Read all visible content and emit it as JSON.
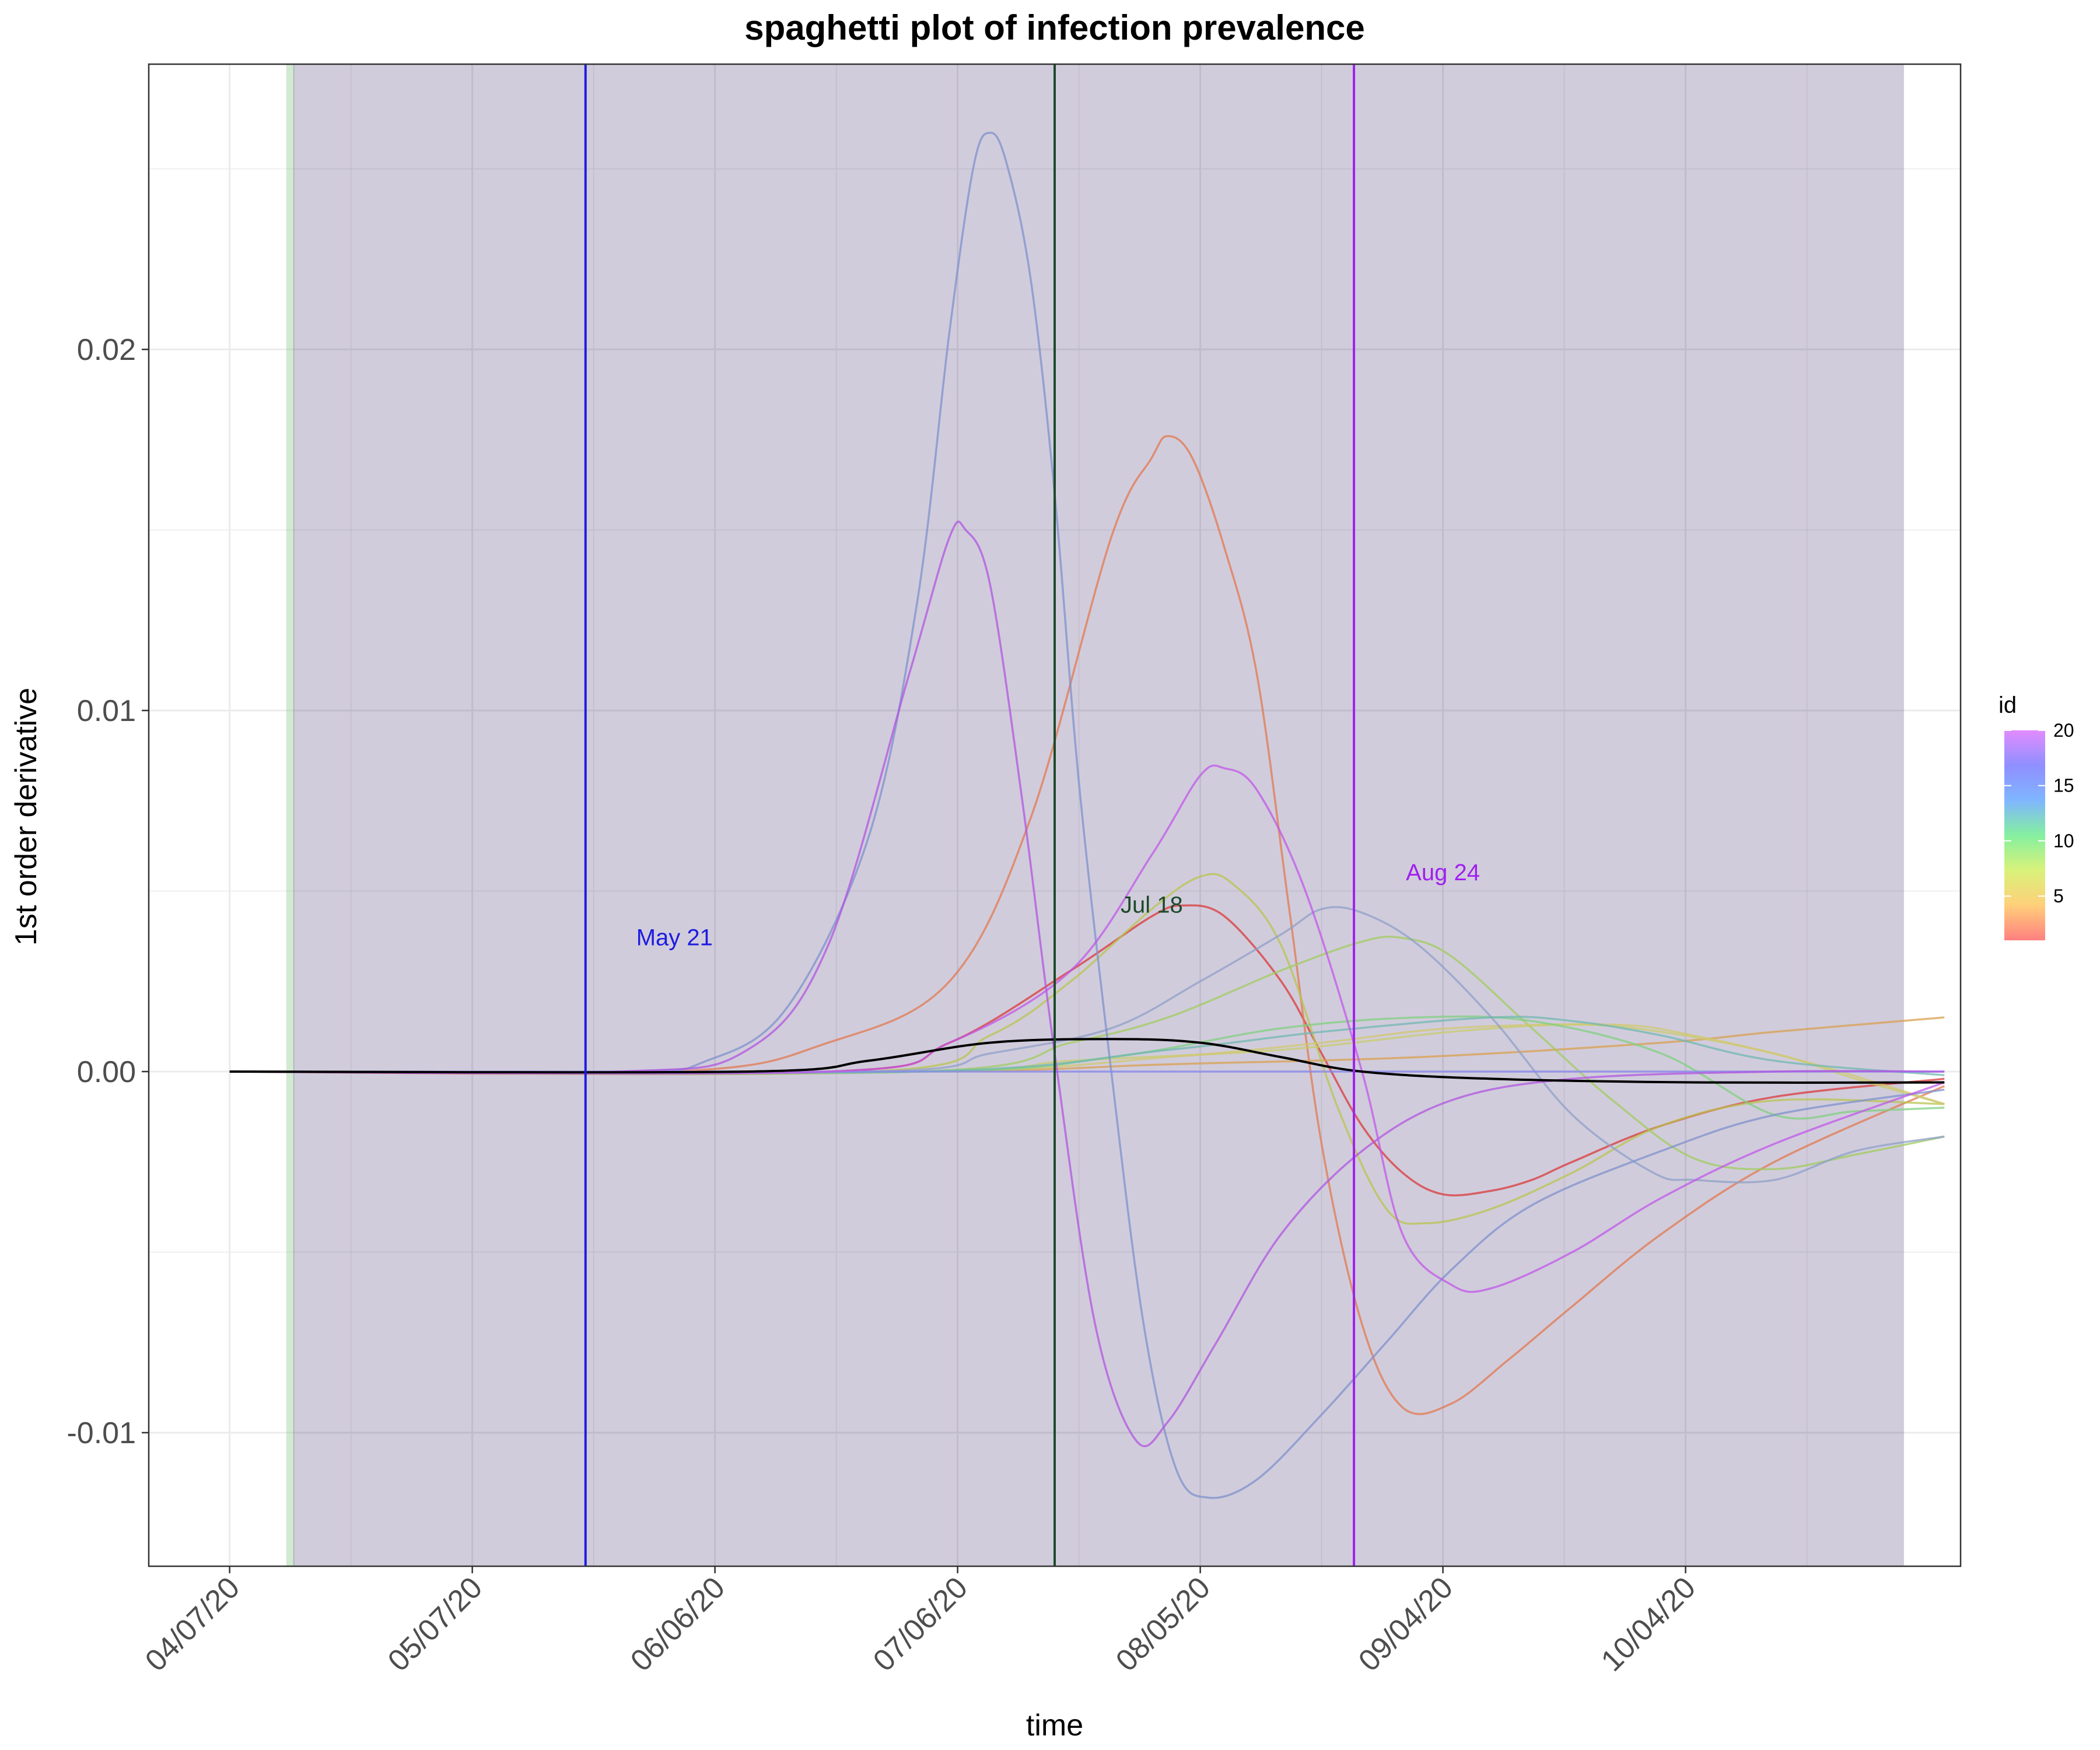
{
  "chart_data": {
    "type": "line",
    "title": "spaghetti plot of infection prevalence",
    "xlabel": "time",
    "ylabel": "1st order derivative",
    "x_ticks": [
      "04/07/20",
      "05/07/20",
      "06/06/20",
      "07/06/20",
      "08/05/20",
      "09/04/20",
      "10/04/20"
    ],
    "xlim": [
      "2020-03-28",
      "2020-11-07"
    ],
    "y_ticks": [
      "-0.01",
      "0.00",
      "0.01",
      "0.02"
    ],
    "ylim": [
      -0.0137,
      0.0279
    ],
    "grid": true,
    "shaded_region": {
      "from": "2020-04-14",
      "to": "2020-10-31",
      "color": "#2e1760",
      "opacity": 0.22
    },
    "green_strip": {
      "from": "2020-04-14",
      "to": "2020-04-15",
      "color": "#7fc47f",
      "opacity": 0.35
    },
    "vlines": [
      {
        "date": "2020-05-21",
        "label": "May 21",
        "color": "#1c1ce0",
        "label_x": "2020-06-01",
        "label_y": 0.0035
      },
      {
        "date": "2020-07-18",
        "label": "Jul 18",
        "color": "#1d4a2a",
        "label_x": "2020-07-30",
        "label_y": 0.0044
      },
      {
        "date": "2020-08-24",
        "label": "Aug 24",
        "color": "#a020f0",
        "label_x": "2020-09-04",
        "label_y": 0.0053
      }
    ],
    "legend": {
      "title": "id",
      "position": "right",
      "ticks": [
        "20",
        "15",
        "10",
        "5"
      ],
      "tick_values": [
        20,
        15,
        10,
        5
      ],
      "range": [
        1,
        20
      ],
      "colors": [
        "#ff8080",
        "#ffcf7a",
        "#d9f27a",
        "#85f0a0",
        "#7fb6ff",
        "#8f8fff",
        "#e28cff"
      ]
    },
    "series": [
      {
        "id": 1,
        "color": "#d93a3a",
        "points": [
          [
            "2020-04-07",
            0
          ],
          [
            "2020-06-20",
            0
          ],
          [
            "2020-07-05",
            0.0008
          ],
          [
            "2020-07-20",
            0.0028
          ],
          [
            "2020-07-30",
            0.0043
          ],
          [
            "2020-08-03",
            0.0046
          ],
          [
            "2020-08-08",
            0.0043
          ],
          [
            "2020-08-15",
            0.0025
          ],
          [
            "2020-08-20",
            0.0005
          ],
          [
            "2020-08-25",
            -0.0015
          ],
          [
            "2020-08-30",
            -0.0028
          ],
          [
            "2020-09-04",
            -0.0034
          ],
          [
            "2020-09-10",
            -0.0033
          ],
          [
            "2020-09-15",
            -0.003
          ],
          [
            "2020-09-20",
            -0.0025
          ],
          [
            "2020-10-01",
            -0.0015
          ],
          [
            "2020-10-15",
            -0.0007
          ],
          [
            "2020-11-05",
            -0.0002
          ]
        ]
      },
      {
        "id": 3,
        "color": "#e07a50",
        "points": [
          [
            "2020-04-07",
            0
          ],
          [
            "2020-06-01",
            0
          ],
          [
            "2020-06-20",
            0.0008
          ],
          [
            "2020-07-05",
            0.0025
          ],
          [
            "2020-07-15",
            0.007
          ],
          [
            "2020-07-25",
            0.0148
          ],
          [
            "2020-07-30",
            0.017
          ],
          [
            "2020-08-01",
            0.0176
          ],
          [
            "2020-08-04",
            0.017
          ],
          [
            "2020-08-08",
            0.0145
          ],
          [
            "2020-08-12",
            0.011
          ],
          [
            "2020-08-16",
            0.0045
          ],
          [
            "2020-08-20",
            -0.002
          ],
          [
            "2020-08-25",
            -0.007
          ],
          [
            "2020-08-30",
            -0.0093
          ],
          [
            "2020-09-05",
            -0.0092
          ],
          [
            "2020-09-12",
            -0.008
          ],
          [
            "2020-09-20",
            -0.0065
          ],
          [
            "2020-10-01",
            -0.0045
          ],
          [
            "2020-10-15",
            -0.0025
          ],
          [
            "2020-11-05",
            -0.0004
          ]
        ]
      },
      {
        "id": 4,
        "color": "#d8a050",
        "points": [
          [
            "2020-04-07",
            0
          ],
          [
            "2020-07-01",
            0
          ],
          [
            "2020-08-01",
            0.0002
          ],
          [
            "2020-09-01",
            0.0004
          ],
          [
            "2020-10-01",
            0.0008
          ],
          [
            "2020-10-15",
            0.0011
          ],
          [
            "2020-11-05",
            0.0015
          ]
        ]
      },
      {
        "id": 5,
        "color": "#b8c450",
        "points": [
          [
            "2020-04-07",
            0
          ],
          [
            "2020-06-25",
            0
          ],
          [
            "2020-07-10",
            0.001
          ],
          [
            "2020-07-20",
            0.0025
          ],
          [
            "2020-07-30",
            0.0045
          ],
          [
            "2020-08-05",
            0.0054
          ],
          [
            "2020-08-09",
            0.0052
          ],
          [
            "2020-08-15",
            0.0035
          ],
          [
            "2020-08-22",
            -0.001
          ],
          [
            "2020-08-28",
            -0.0038
          ],
          [
            "2020-09-02",
            -0.0042
          ],
          [
            "2020-09-10",
            -0.0038
          ],
          [
            "2020-09-20",
            -0.0028
          ],
          [
            "2020-10-01",
            -0.0015
          ],
          [
            "2020-10-15",
            -0.0008
          ],
          [
            "2020-11-05",
            -0.0009
          ]
        ]
      },
      {
        "id": 6,
        "color": "#c8cc70",
        "points": [
          [
            "2020-04-07",
            0
          ],
          [
            "2020-07-01",
            0
          ],
          [
            "2020-07-20",
            0.0003
          ],
          [
            "2020-08-15",
            0.0006
          ],
          [
            "2020-09-05",
            0.0011
          ],
          [
            "2020-09-20",
            0.0013
          ],
          [
            "2020-10-01",
            0.0011
          ],
          [
            "2020-10-15",
            0.0005
          ],
          [
            "2020-10-25",
            -0.0002
          ],
          [
            "2020-11-05",
            -0.0009
          ]
        ]
      },
      {
        "id": 7,
        "color": "#a0cc60",
        "points": [
          [
            "2020-04-07",
            0
          ],
          [
            "2020-07-01",
            0
          ],
          [
            "2020-07-20",
            0.0008
          ],
          [
            "2020-08-01",
            0.0015
          ],
          [
            "2020-08-15",
            0.0028
          ],
          [
            "2020-08-25",
            0.0036
          ],
          [
            "2020-08-30",
            0.0037
          ],
          [
            "2020-09-05",
            0.0032
          ],
          [
            "2020-09-15",
            0.0012
          ],
          [
            "2020-09-25",
            -0.0008
          ],
          [
            "2020-10-05",
            -0.0024
          ],
          [
            "2020-10-15",
            -0.0027
          ],
          [
            "2020-10-25",
            -0.0023
          ],
          [
            "2020-11-05",
            -0.0018
          ]
        ]
      },
      {
        "id": 8,
        "color": "#d0c870",
        "points": [
          [
            "2020-04-07",
            0
          ],
          [
            "2020-07-01",
            0
          ],
          [
            "2020-08-01",
            0.0004
          ],
          [
            "2020-08-20",
            0.0008
          ],
          [
            "2020-09-05",
            0.0012
          ],
          [
            "2020-09-25",
            0.0013
          ],
          [
            "2020-10-05",
            0.001
          ],
          [
            "2020-10-20",
            0.0002
          ],
          [
            "2020-11-05",
            -0.0009
          ]
        ]
      },
      {
        "id": 10,
        "color": "#80d080",
        "points": [
          [
            "2020-04-07",
            0
          ],
          [
            "2020-07-01",
            0
          ],
          [
            "2020-07-25",
            0.0004
          ],
          [
            "2020-08-15",
            0.0012
          ],
          [
            "2020-09-01",
            0.0015
          ],
          [
            "2020-09-15",
            0.0014
          ],
          [
            "2020-10-01",
            0.0005
          ],
          [
            "2020-10-15",
            -0.0012
          ],
          [
            "2020-10-25",
            -0.0011
          ],
          [
            "2020-11-05",
            -0.001
          ]
        ]
      },
      {
        "id": 12,
        "color": "#70b8b0",
        "points": [
          [
            "2020-04-07",
            0
          ],
          [
            "2020-07-01",
            0
          ],
          [
            "2020-08-01",
            0.0006
          ],
          [
            "2020-08-20",
            0.0011
          ],
          [
            "2020-09-10",
            0.0015
          ],
          [
            "2020-09-20",
            0.0014
          ],
          [
            "2020-10-01",
            0.001
          ],
          [
            "2020-10-15",
            0.0003
          ],
          [
            "2020-11-05",
            -0.0001
          ]
        ]
      },
      {
        "id": 14,
        "color": "#8fa0c8",
        "points": [
          [
            "2020-04-07",
            0
          ],
          [
            "2020-06-25",
            0
          ],
          [
            "2020-07-10",
            0.0005
          ],
          [
            "2020-07-25",
            0.0012
          ],
          [
            "2020-08-05",
            0.0025
          ],
          [
            "2020-08-15",
            0.0038
          ],
          [
            "2020-08-20",
            0.0045
          ],
          [
            "2020-08-25",
            0.0044
          ],
          [
            "2020-09-01",
            0.0035
          ],
          [
            "2020-09-10",
            0.0015
          ],
          [
            "2020-09-20",
            -0.0012
          ],
          [
            "2020-09-30",
            -0.0028
          ],
          [
            "2020-10-05",
            -0.003
          ],
          [
            "2020-10-15",
            -0.003
          ],
          [
            "2020-10-25",
            -0.0022
          ],
          [
            "2020-11-05",
            -0.0018
          ]
        ]
      },
      {
        "id": 15,
        "color": "#7d92cc",
        "points": [
          [
            "2020-04-07",
            0
          ],
          [
            "2020-05-25",
            0
          ],
          [
            "2020-06-05",
            0.0003
          ],
          [
            "2020-06-15",
            0.0018
          ],
          [
            "2020-06-25",
            0.0065
          ],
          [
            "2020-07-01",
            0.013
          ],
          [
            "2020-07-05",
            0.0205
          ],
          [
            "2020-07-08",
            0.0251
          ],
          [
            "2020-07-10",
            0.026
          ],
          [
            "2020-07-12",
            0.0252
          ],
          [
            "2020-07-15",
            0.022
          ],
          [
            "2020-07-18",
            0.016
          ],
          [
            "2020-07-21",
            0.008
          ],
          [
            "2020-07-25",
            0.0
          ],
          [
            "2020-07-29",
            -0.007
          ],
          [
            "2020-08-02",
            -0.011
          ],
          [
            "2020-08-06",
            -0.0118
          ],
          [
            "2020-08-12",
            -0.0113
          ],
          [
            "2020-08-20",
            -0.0095
          ],
          [
            "2020-08-28",
            -0.0075
          ],
          [
            "2020-09-05",
            -0.0055
          ],
          [
            "2020-09-15",
            -0.0037
          ],
          [
            "2020-10-01",
            -0.0022
          ],
          [
            "2020-10-15",
            -0.0012
          ],
          [
            "2020-11-05",
            -0.0005
          ]
        ]
      },
      {
        "id": 17,
        "color": "#8888ee",
        "points": [
          [
            "2020-04-07",
            0
          ],
          [
            "2020-11-05",
            0
          ]
        ]
      },
      {
        "id": 19,
        "color": "#b055e0",
        "points": [
          [
            "2020-04-07",
            0
          ],
          [
            "2020-05-25",
            0
          ],
          [
            "2020-06-10",
            0.0006
          ],
          [
            "2020-06-20",
            0.0035
          ],
          [
            "2020-06-30",
            0.011
          ],
          [
            "2020-07-05",
            0.0148
          ],
          [
            "2020-07-07",
            0.015
          ],
          [
            "2020-07-10",
            0.0135
          ],
          [
            "2020-07-14",
            0.0075
          ],
          [
            "2020-07-18",
            0.0005
          ],
          [
            "2020-07-23",
            -0.007
          ],
          [
            "2020-07-28",
            -0.0102
          ],
          [
            "2020-08-01",
            -0.0097
          ],
          [
            "2020-08-07",
            -0.0075
          ],
          [
            "2020-08-15",
            -0.0045
          ],
          [
            "2020-08-25",
            -0.0022
          ],
          [
            "2020-09-05",
            -0.0008
          ],
          [
            "2020-09-20",
            -0.0002
          ],
          [
            "2020-10-15",
            0
          ],
          [
            "2020-11-05",
            0
          ]
        ]
      },
      {
        "id": 20,
        "color": "#c058e8",
        "points": [
          [
            "2020-04-07",
            0
          ],
          [
            "2020-06-20",
            0
          ],
          [
            "2020-07-05",
            0.0008
          ],
          [
            "2020-07-20",
            0.0028
          ],
          [
            "2020-07-30",
            0.006
          ],
          [
            "2020-08-05",
            0.0082
          ],
          [
            "2020-08-08",
            0.0084
          ],
          [
            "2020-08-12",
            0.0078
          ],
          [
            "2020-08-18",
            0.005
          ],
          [
            "2020-08-25",
            0.0
          ],
          [
            "2020-08-30",
            -0.0045
          ],
          [
            "2020-09-05",
            -0.0059
          ],
          [
            "2020-09-10",
            -0.006
          ],
          [
            "2020-09-20",
            -0.005
          ],
          [
            "2020-10-01",
            -0.0035
          ],
          [
            "2020-10-15",
            -0.002
          ],
          [
            "2020-11-05",
            -0.0003
          ]
        ]
      },
      {
        "id": 0,
        "color": "#000000",
        "mean": true,
        "points": [
          [
            "2020-04-07",
            0
          ],
          [
            "2020-06-10",
            0
          ],
          [
            "2020-06-25",
            0.0003
          ],
          [
            "2020-07-10",
            0.0008
          ],
          [
            "2020-07-25",
            0.0009
          ],
          [
            "2020-08-05",
            0.0008
          ],
          [
            "2020-08-15",
            0.0004
          ],
          [
            "2020-08-25",
            0.0
          ],
          [
            "2020-09-10",
            -0.0002
          ],
          [
            "2020-10-05",
            -0.0003
          ],
          [
            "2020-11-05",
            -0.0003
          ]
        ]
      }
    ]
  }
}
